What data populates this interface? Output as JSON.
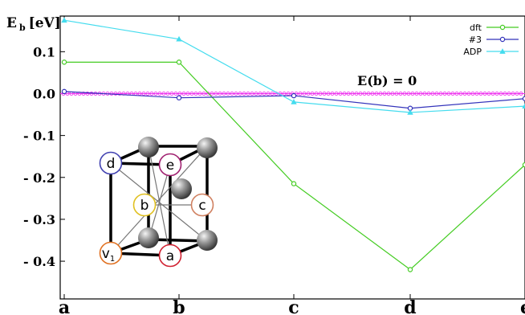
{
  "chart_data": {
    "type": "line",
    "ylabel": "E_b [eV]",
    "ylabel_main": "E",
    "ylabel_sub": "b",
    "ylabel_unit": "[eV]",
    "categories": [
      "a",
      "b",
      "c",
      "d",
      "e"
    ],
    "y_ticks": [
      {
        "value": 0.1,
        "label": "0.1"
      },
      {
        "value": 0.0,
        "label": "0.0"
      },
      {
        "value": -0.1,
        "label": "- 0.1"
      },
      {
        "value": -0.2,
        "label": "- 0.2"
      },
      {
        "value": -0.3,
        "label": "- 0.3"
      },
      {
        "value": -0.4,
        "label": "- 0.4"
      }
    ],
    "ylim": [
      -0.49,
      0.185
    ],
    "grid": false,
    "legend_position": "top-right",
    "series": [
      {
        "name": "dft",
        "color": "#44cc22",
        "marker": "circle-open",
        "values": [
          0.075,
          0.075,
          -0.215,
          -0.42,
          -0.17
        ]
      },
      {
        "name": "#3",
        "color": "#3333bb",
        "marker": "circle-open",
        "values": [
          0.005,
          -0.01,
          -0.005,
          -0.035,
          -0.012
        ]
      },
      {
        "name": "ADP",
        "color": "#44dcee",
        "marker": "triangle-filled",
        "values": [
          0.175,
          0.13,
          -0.02,
          -0.045,
          -0.03
        ]
      }
    ],
    "reference_line": {
      "value": 0,
      "color": "#ee33ee",
      "label": "E(b) = 0"
    },
    "inset": {
      "description_labels": [
        "d",
        "e",
        "b",
        "c",
        "v1",
        "a"
      ],
      "labels": [
        {
          "key": "d",
          "text": "d",
          "sub": "",
          "color": "#4040b0"
        },
        {
          "key": "e",
          "text": "e",
          "sub": "",
          "color": "#a02070"
        },
        {
          "key": "b",
          "text": "b",
          "sub": "",
          "color": "#e0c020"
        },
        {
          "key": "c",
          "text": "c",
          "sub": "",
          "color": "#d08060"
        },
        {
          "key": "v1",
          "text": "v",
          "sub": "1",
          "color": "#e07020"
        },
        {
          "key": "a",
          "text": "a",
          "sub": "",
          "color": "#d02030"
        }
      ]
    }
  }
}
